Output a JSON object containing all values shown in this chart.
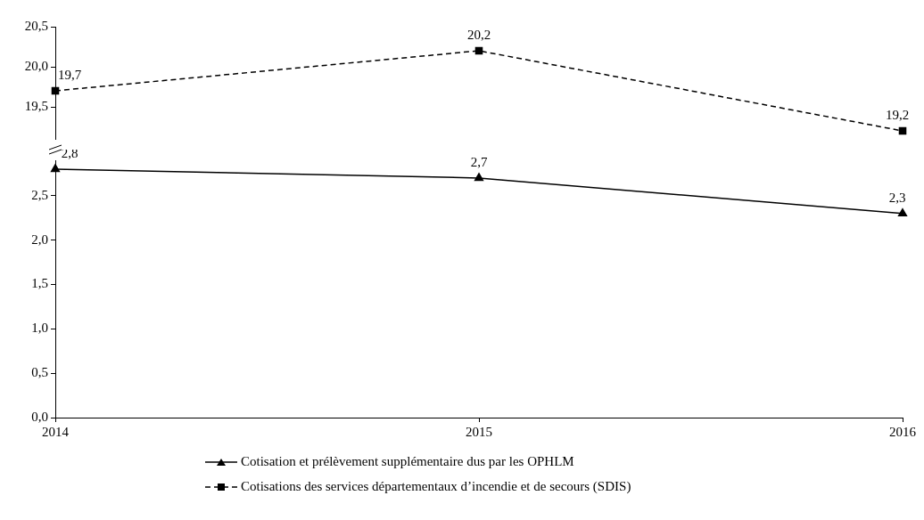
{
  "chart_data": [
    {
      "type": "line",
      "categories": [
        "2014",
        "2015",
        "2016"
      ],
      "series": [
        {
          "name": "Cotisations des services départementaux d’incendie et de secours (SDIS)",
          "color": "#000000",
          "values": [
            19.7,
            20.2,
            19.2
          ],
          "value_labels": [
            "19,7",
            "20,2",
            "19,2"
          ],
          "marker": "square",
          "line_style": "dashed"
        }
      ],
      "ylim": [
        19.1,
        20.5
      ],
      "yticks": [
        {
          "value": 19.5,
          "label": "19,5"
        },
        {
          "value": 20,
          "label": "20,0"
        },
        {
          "value": 20.5,
          "label": "20,5"
        }
      ],
      "tick_labels": "y",
      "grid": false,
      "legend": "bottom"
    },
    {
      "type": "line",
      "categories": [
        "2014",
        "2015",
        "2016"
      ],
      "series": [
        {
          "name": "Cotisation et prélèvement supplémentaire dus par les OPHLM",
          "color": "#000000",
          "values": [
            2.8,
            2.7,
            2.3
          ],
          "value_labels": [
            "2,8",
            "2,7",
            "2,3"
          ],
          "marker": "triangle",
          "line_style": "solid"
        }
      ],
      "ylim": [
        0,
        2.9
      ],
      "yticks": [
        {
          "value": 0,
          "label": "0,0"
        },
        {
          "value": 0.5,
          "label": "0,5"
        },
        {
          "value": 1,
          "label": "1,0"
        },
        {
          "value": 1.5,
          "label": "1,5"
        },
        {
          "value": 2,
          "label": "2,0"
        },
        {
          "value": 2.5,
          "label": "2,5"
        }
      ],
      "grid": false,
      "legend": "bottom"
    }
  ]
}
